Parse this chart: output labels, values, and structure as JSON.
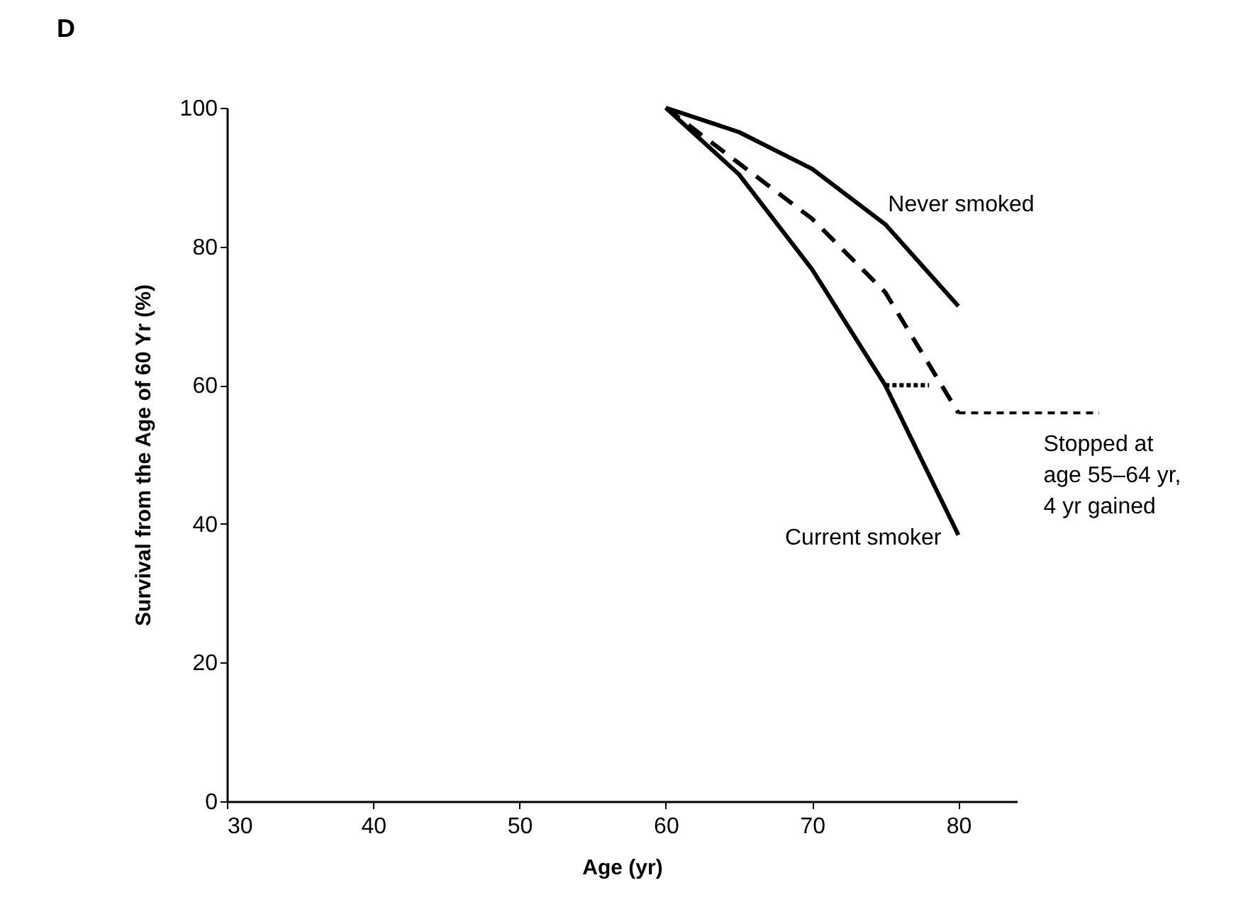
{
  "chart_data": {
    "type": "line",
    "title": "D",
    "xlabel": "Age (yr)",
    "ylabel": "Survival from the Age of 60 Yr (%)",
    "xlim": [
      30,
      84
    ],
    "ylim": [
      0,
      100
    ],
    "xticks": [
      30,
      40,
      50,
      60,
      70,
      80
    ],
    "yticks": [
      0,
      20,
      40,
      60,
      80,
      100
    ],
    "grid": false,
    "marker": "none",
    "series": [
      {
        "name": "Never smoked",
        "color": "#000000",
        "line_style": "solid",
        "x": [
          60,
          65,
          70,
          75,
          80
        ],
        "values": [
          100,
          96.5,
          91.2,
          83.2,
          71.4
        ]
      },
      {
        "name": "Current smoker",
        "color": "#000000",
        "line_style": "solid",
        "x": [
          60,
          65,
          70,
          75,
          80
        ],
        "values": [
          100,
          90.4,
          76.7,
          60,
          38.4
        ]
      },
      {
        "color": "#000000",
        "line_style": "dashed",
        "x": [
          60,
          65,
          70,
          75,
          80
        ],
        "values": [
          100,
          92,
          84,
          73.4,
          56
        ]
      },
      {
        "color": "#000000",
        "line_style": "dotted",
        "x": [
          75,
          78
        ],
        "values": [
          60,
          60
        ]
      }
    ],
    "annotations": [
      {
        "text": "Stopped at\nage 55–64 yr,\n4 yr gained",
        "x": 80,
        "y": 56
      }
    ]
  }
}
